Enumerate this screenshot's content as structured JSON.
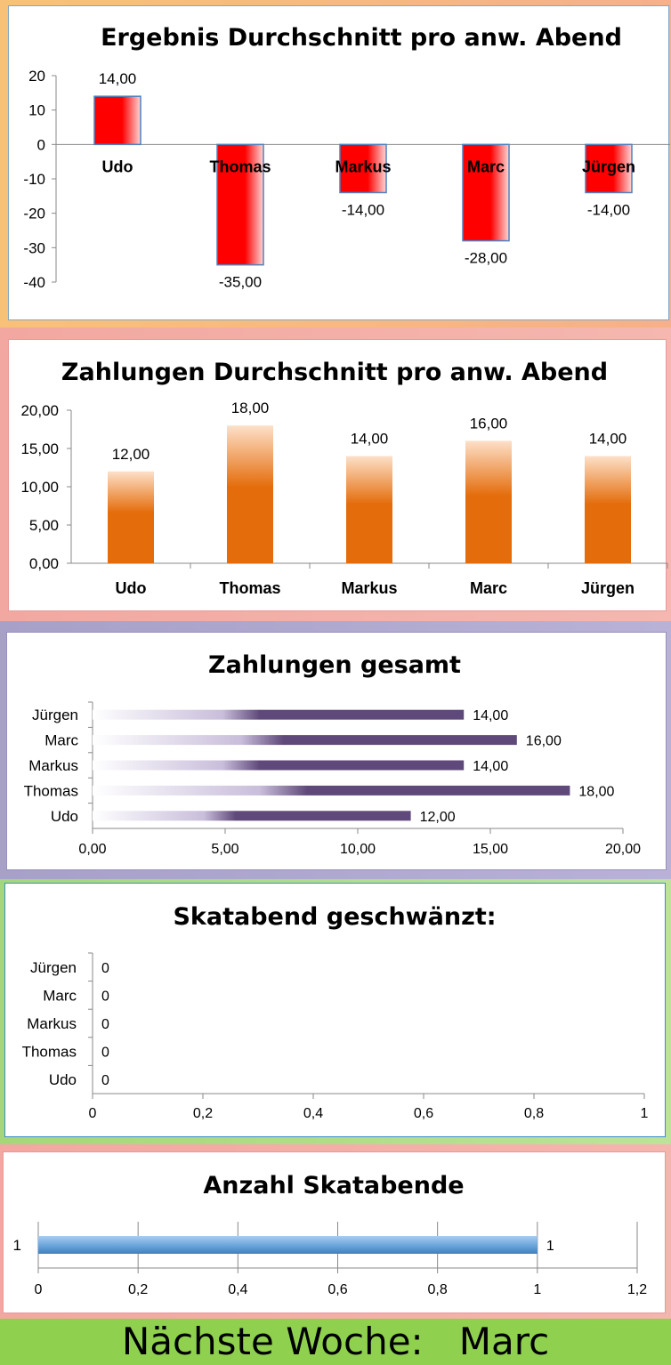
{
  "colors": {
    "chart1_bar": "#ff0000",
    "chart1_border": "#4f81bd",
    "chart2_bar": "#e46c0a",
    "chart3_bar": "#5f497a",
    "chart5_bar": "#6fa8dc"
  },
  "footer": {
    "label": "Nächste Woche:",
    "name": "Marc"
  },
  "chart_data": [
    {
      "type": "bar",
      "title": "Ergebnis Durchschnitt pro anw. Abend",
      "categories": [
        "Udo",
        "Thomas",
        "Markus",
        "Marc",
        "Jürgen"
      ],
      "values": [
        14,
        -35,
        -14,
        -28,
        -14
      ],
      "value_labels": [
        "14,00",
        "-35,00",
        "-14,00",
        "-28,00",
        "-14,00"
      ],
      "yticks": [
        "20",
        "10",
        "0",
        "-10",
        "-20",
        "-30",
        "-40"
      ],
      "ylim": [
        -40,
        20
      ],
      "grid": false
    },
    {
      "type": "bar",
      "title": "Zahlungen Durchschnitt pro anw. Abend",
      "categories": [
        "Udo",
        "Thomas",
        "Markus",
        "Marc",
        "Jürgen"
      ],
      "values": [
        12,
        18,
        14,
        16,
        14
      ],
      "value_labels": [
        "12,00",
        "18,00",
        "14,00",
        "16,00",
        "14,00"
      ],
      "yticks": [
        "20,00",
        "15,00",
        "10,00",
        "5,00",
        "0,00"
      ],
      "ylim": [
        0,
        20
      ],
      "grid": false
    },
    {
      "type": "bar",
      "orientation": "horizontal",
      "title": "Zahlungen gesamt",
      "categories": [
        "Jürgen",
        "Marc",
        "Markus",
        "Thomas",
        "Udo"
      ],
      "values": [
        14,
        16,
        14,
        18,
        12
      ],
      "value_labels": [
        "14,00",
        "16,00",
        "14,00",
        "18,00",
        "12,00"
      ],
      "xticks": [
        "0,00",
        "5,00",
        "10,00",
        "15,00",
        "20,00"
      ],
      "xlim": [
        0,
        20
      ],
      "grid": false
    },
    {
      "type": "bar",
      "orientation": "horizontal",
      "title": "Skatabend geschwänzt:",
      "categories": [
        "Jürgen",
        "Marc",
        "Markus",
        "Thomas",
        "Udo"
      ],
      "values": [
        0,
        0,
        0,
        0,
        0
      ],
      "value_labels": [
        "0",
        "0",
        "0",
        "0",
        "0"
      ],
      "xticks": [
        "0",
        "0,2",
        "0,4",
        "0,6",
        "0,8",
        "1"
      ],
      "xlim": [
        0,
        1
      ],
      "grid": false
    },
    {
      "type": "bar",
      "orientation": "horizontal",
      "title": "Anzahl Skatabende",
      "categories": [
        "1"
      ],
      "values": [
        1
      ],
      "value_labels": [
        "1"
      ],
      "xticks": [
        "0",
        "0,2",
        "0,4",
        "0,6",
        "0,8",
        "1",
        "1,2"
      ],
      "xlim": [
        0,
        1.2
      ],
      "grid": true
    }
  ]
}
